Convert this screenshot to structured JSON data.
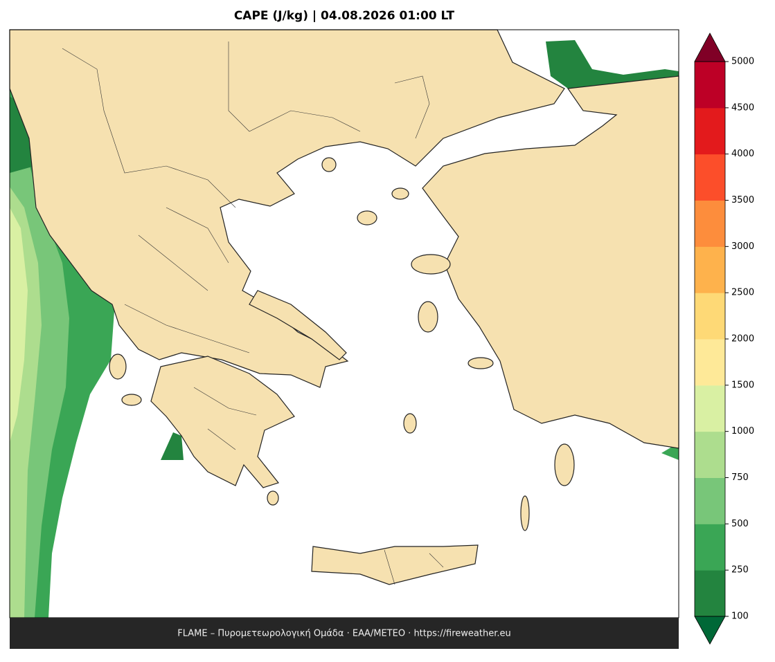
{
  "title": "CAPE (J/kg)  |  04.08.2026 01:00 LT",
  "colorbar": {
    "ticks": [
      100,
      250,
      500,
      750,
      1000,
      1500,
      2000,
      2500,
      3000,
      3500,
      4000,
      4500,
      5000
    ],
    "colors": [
      "#23843f",
      "#3aa655",
      "#78c679",
      "#addd8e",
      "#d9f0a3",
      "#fee998",
      "#fed976",
      "#feb24c",
      "#fd8d3c",
      "#fc4e2a",
      "#e31a1c",
      "#bd0026"
    ],
    "under_color": "#006837",
    "over_color": "#800026"
  },
  "footer": "FLAME – Πυρομετεωρολογική Ομάδα · ΕΑΑ/METEO · https://fireweather.eu"
}
